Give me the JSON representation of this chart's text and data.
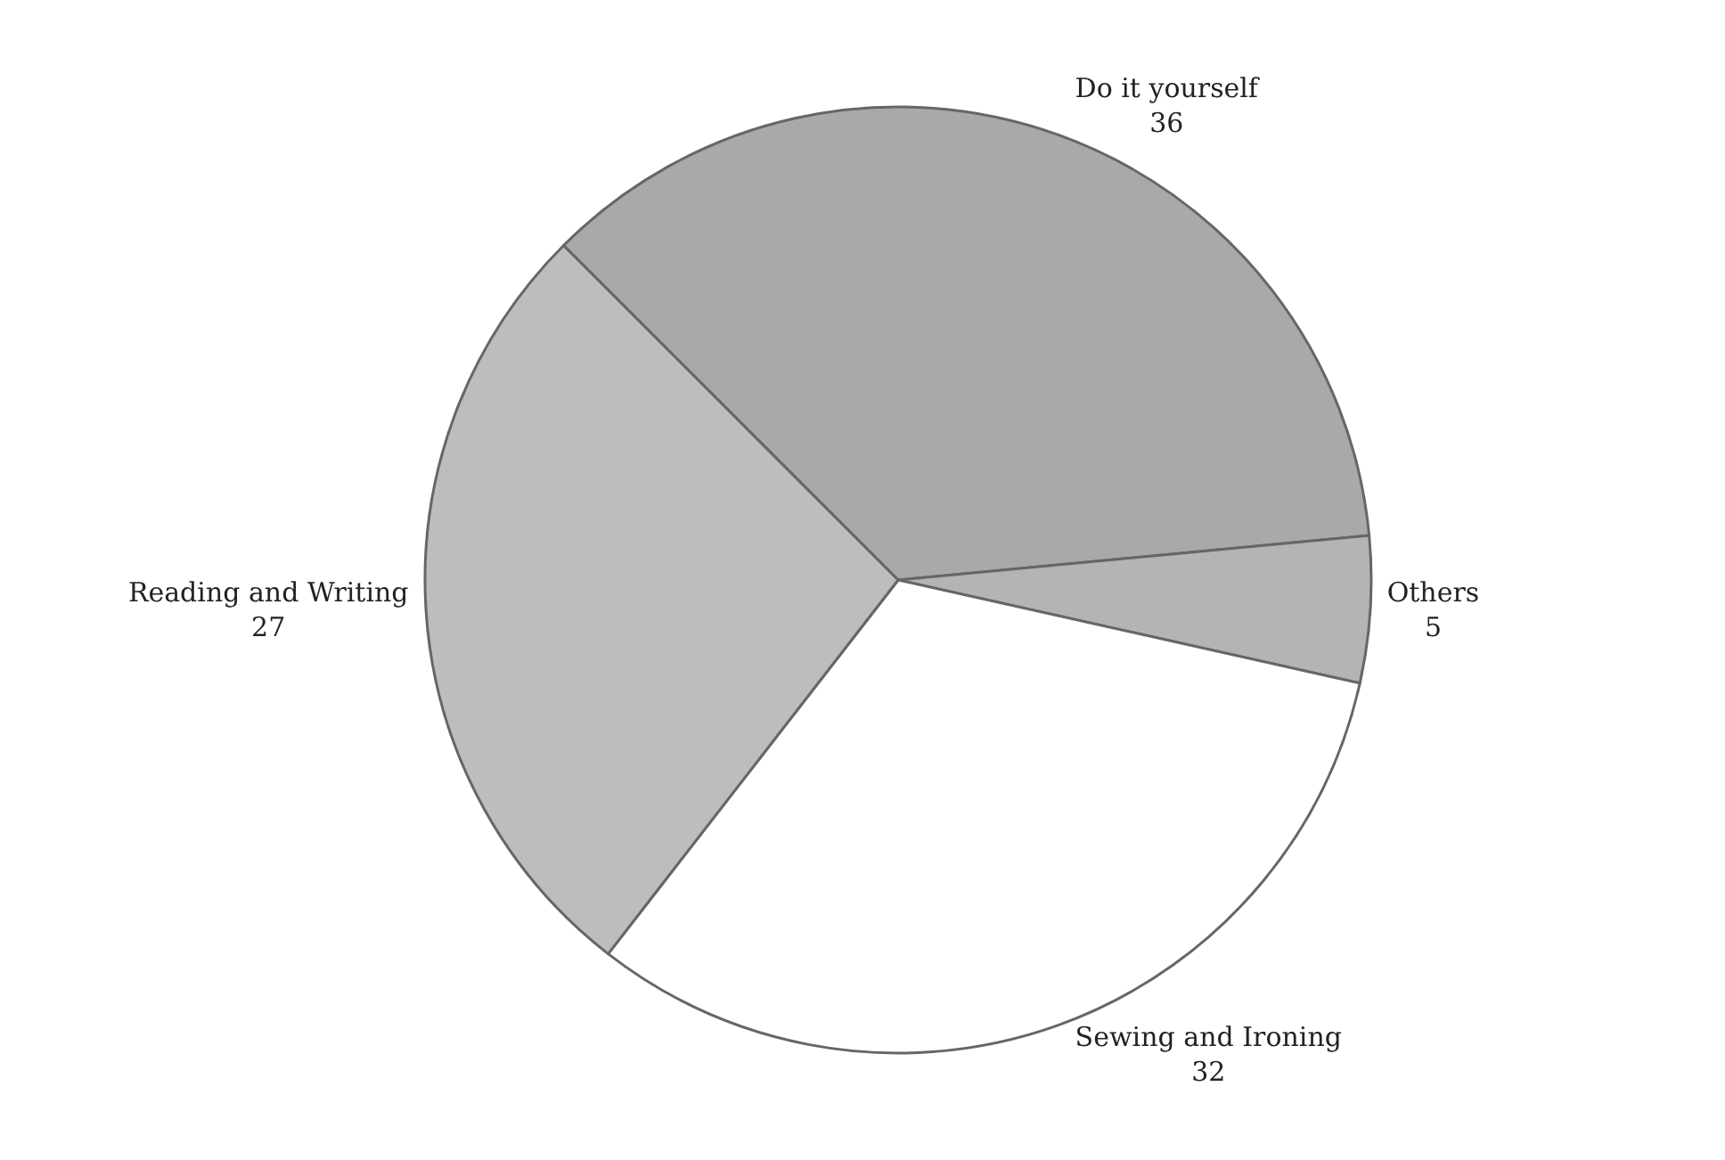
{
  "chart_data": {
    "type": "pie",
    "categories": [
      "Do it yourself",
      "Others",
      "Sewing and Ironing",
      "Reading and Writing"
    ],
    "values": [
      36,
      5,
      32,
      27
    ],
    "colors": [
      "#a9a9a9",
      "#b4b4b4",
      "#ffffff",
      "#bdbdbd"
    ],
    "data_labels": true,
    "legend": false
  }
}
